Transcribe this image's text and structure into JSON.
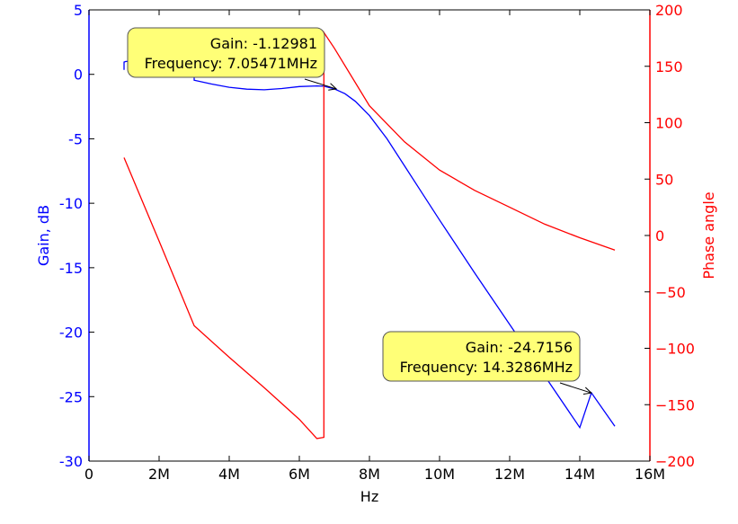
{
  "chart_data": {
    "type": "line",
    "x_unit_labels": [
      "0",
      "2M",
      "4M",
      "6M",
      "8M",
      "10M",
      "12M",
      "14M",
      "16M"
    ],
    "xlim": [
      0,
      16
    ],
    "xlabel": "Hz",
    "left_axis": {
      "label": "Gain, dB",
      "color": "#0000ff",
      "ylim": [
        -30,
        5
      ],
      "ticks": [
        5,
        0,
        -5,
        -10,
        -15,
        -20,
        -25,
        -30
      ],
      "tick_labels": [
        "5",
        "0",
        "-5",
        "-10",
        "-15",
        "-20",
        "-25",
        "-30"
      ]
    },
    "right_axis": {
      "label": "Phase angle",
      "color": "#ff0000",
      "ylim": [
        -200,
        200
      ],
      "ticks": [
        200,
        150,
        100,
        50,
        0,
        -50,
        -100,
        -150,
        -200
      ],
      "tick_labels": [
        "200",
        "150",
        "100",
        "50",
        "0",
        "−50",
        "−100",
        "−150",
        "−200"
      ]
    },
    "series": [
      {
        "axis": "left",
        "color": "#0000ff",
        "x": [
          1.0,
          1.0,
          1.05,
          1.5,
          2.0,
          2.5,
          3.0,
          3.0,
          3.5,
          4.0,
          4.5,
          5.0,
          5.5,
          6.0,
          6.5,
          6.7,
          7.0,
          7.3,
          7.6,
          8.0,
          8.5,
          9.0,
          9.5,
          10.0,
          11.0,
          12.0,
          13.0,
          14.0,
          14.33,
          15.0
        ],
        "y": [
          0.35,
          0.95,
          1.0,
          1.0,
          1.0,
          0.8,
          0.5,
          -0.45,
          -0.75,
          -1.0,
          -1.15,
          -1.2,
          -1.1,
          -0.95,
          -0.9,
          -0.92,
          -1.13,
          -1.5,
          -2.1,
          -3.2,
          -5.0,
          -7.1,
          -9.2,
          -11.3,
          -15.4,
          -19.4,
          -23.4,
          -27.4,
          -24.7,
          -27.3
        ]
      },
      {
        "axis": "right",
        "color": "#ff0000",
        "x": [
          1.0,
          2.0,
          3.0,
          3.0,
          4.0,
          5.0,
          6.0,
          6.5,
          6.7,
          6.7,
          7.0,
          8.0,
          9.0,
          10.0,
          11.0,
          12.0,
          13.0,
          14.0,
          15.0
        ],
        "y": [
          69,
          -5,
          -80,
          -80,
          -108,
          -135,
          -163,
          -180,
          -179,
          180,
          166,
          115,
          83,
          58,
          40,
          25,
          10,
          -2,
          -13
        ]
      }
    ],
    "annotations": [
      {
        "line1": "Gain: -1.12981",
        "line2": "Frequency: 7.05471MHz",
        "point": [
          7.05471,
          -1.12981
        ]
      },
      {
        "line1": "Gain: -24.7156",
        "line2": "Frequency: 14.3286MHz",
        "point": [
          14.3286,
          -24.7156
        ]
      }
    ],
    "annotation_box_color": "#ffff77",
    "grid": false
  }
}
